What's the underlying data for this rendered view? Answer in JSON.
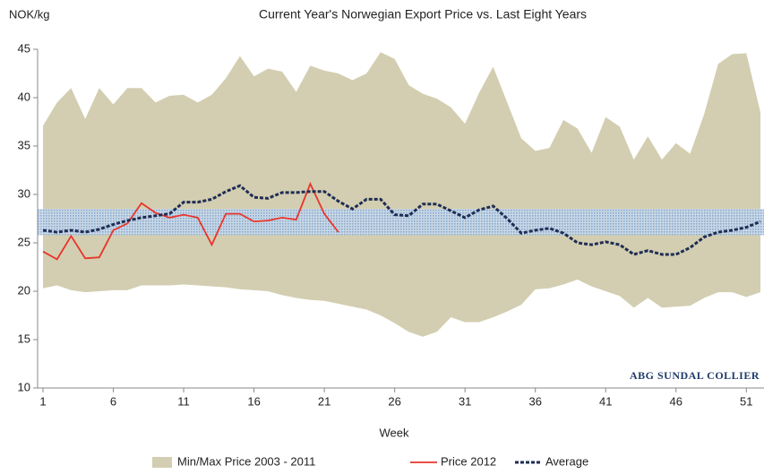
{
  "chart_data": {
    "type": "line",
    "title": "Current Year's Norwegian Export Price vs. Last Eight Years",
    "y_label": "NOK/kg",
    "x_label": "Week",
    "annotation": "ABG SUNDAL COLLIER",
    "x": [
      1,
      2,
      3,
      4,
      5,
      6,
      7,
      8,
      9,
      10,
      11,
      12,
      13,
      14,
      15,
      16,
      17,
      18,
      19,
      20,
      21,
      22,
      23,
      24,
      25,
      26,
      27,
      28,
      29,
      30,
      31,
      32,
      33,
      34,
      35,
      36,
      37,
      38,
      39,
      40,
      41,
      42,
      43,
      44,
      45,
      46,
      47,
      48,
      49,
      50,
      51,
      52
    ],
    "xlim": [
      1,
      52
    ],
    "xticks": [
      1,
      6,
      11,
      16,
      21,
      26,
      31,
      36,
      41,
      46,
      51
    ],
    "ylim": [
      10,
      45
    ],
    "yticks": [
      10,
      15,
      20,
      25,
      30,
      35,
      40,
      45
    ],
    "band": {
      "range": [
        25.8,
        28.5
      ],
      "color": "#7fa6d0"
    },
    "legend": "bottom",
    "range_series": {
      "name": "Min/Max Price 2003 - 2011",
      "color": "#d3ceb1",
      "low": [
        20.3,
        20.6,
        20.1,
        19.9,
        20,
        20.1,
        20.1,
        20.6,
        20.6,
        20.6,
        20.7,
        20.6,
        20.5,
        20.4,
        20.2,
        20.1,
        20,
        19.6,
        19.3,
        19.1,
        19,
        18.7,
        18.4,
        18.1,
        17.5,
        16.7,
        15.8,
        15.3,
        15.8,
        17.3,
        16.8,
        16.8,
        17.3,
        17.9,
        18.6,
        20.2,
        20.3,
        20.7,
        21.2,
        20.5,
        20,
        19.5,
        18.3,
        19.3,
        18.3,
        18.4,
        18.5,
        19.3,
        19.9,
        19.9,
        19.4,
        19.9
      ],
      "high": [
        37.1,
        39.5,
        41,
        37.8,
        41,
        39.3,
        41,
        41,
        39.5,
        40.2,
        40.3,
        39.5,
        40.3,
        42,
        44.3,
        42.2,
        43,
        42.7,
        40.6,
        43.3,
        42.8,
        42.5,
        41.8,
        42.5,
        44.7,
        44,
        41.3,
        40.4,
        39.9,
        39,
        37.3,
        40.5,
        43.2,
        39.5,
        35.8,
        34.5,
        34.8,
        37.7,
        36.8,
        34.3,
        38,
        37,
        33.6,
        36,
        33.6,
        35.3,
        34.2,
        38.3,
        43.5,
        44.5,
        44.6,
        38.5
      ]
    },
    "series": [
      {
        "name": "Price 2012",
        "color": "#e8352c",
        "dashed": false,
        "values": [
          24.1,
          23.3,
          25.7,
          23.4,
          23.5,
          26.3,
          27,
          29.1,
          28.1,
          27.6,
          27.9,
          27.6,
          24.8,
          28,
          28,
          27.2,
          27.3,
          27.6,
          27.4,
          31.1,
          28,
          26.1,
          null,
          null,
          null,
          null,
          null,
          null,
          null,
          null,
          null,
          null,
          null,
          null,
          null,
          null,
          null,
          null,
          null,
          null,
          null,
          null,
          null,
          null,
          null,
          null,
          null,
          null,
          null,
          null,
          null,
          null
        ]
      },
      {
        "name": "Average",
        "color": "#1f2d55",
        "dashed": true,
        "values": [
          26.3,
          26.1,
          26.3,
          26.1,
          26.4,
          26.9,
          27.3,
          27.6,
          27.8,
          28,
          29.2,
          29.2,
          29.5,
          30.3,
          30.9,
          29.7,
          29.6,
          30.2,
          30.2,
          30.3,
          30.3,
          29.3,
          28.5,
          29.5,
          29.5,
          27.9,
          27.8,
          29,
          29,
          28.3,
          27.6,
          28.4,
          28.8,
          27.5,
          26,
          26.3,
          26.5,
          26,
          25,
          24.8,
          25.1,
          24.8,
          23.8,
          24.2,
          23.8,
          23.8,
          24.5,
          25.6,
          26.1,
          26.3,
          26.6,
          27.2
        ]
      }
    ]
  }
}
